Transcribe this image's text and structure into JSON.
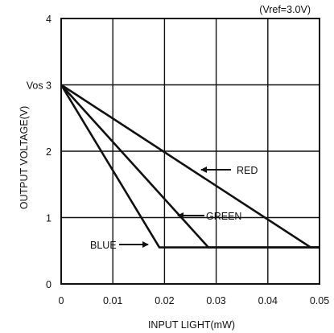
{
  "chart_data": {
    "type": "line",
    "xlabel": "INPUT LIGHT(mW)",
    "ylabel": "OUTPUT VOLTAGE(V)",
    "annotation": "(Vref=3.0V)",
    "xlim": [
      0,
      0.05
    ],
    "ylim": [
      0,
      4
    ],
    "grid": true,
    "x_ticks": [
      "0",
      "0.01",
      "0.02",
      "0.03",
      "0.04",
      "0.05"
    ],
    "y_ticks": [
      "0",
      "1",
      "2",
      "Vos 3",
      "4"
    ],
    "series": [
      {
        "name": "RED",
        "color": "#111111",
        "x": [
          0,
          0.0483,
          0.05
        ],
        "y": [
          3,
          0.55,
          0.55
        ]
      },
      {
        "name": "GREEN",
        "color": "#111111",
        "x": [
          0,
          0.0285,
          0.05
        ],
        "y": [
          3,
          0.55,
          0.55
        ]
      },
      {
        "name": "BLUE",
        "color": "#111111",
        "x": [
          0,
          0.019,
          0.05
        ],
        "y": [
          3,
          0.55,
          0.55
        ]
      }
    ]
  }
}
